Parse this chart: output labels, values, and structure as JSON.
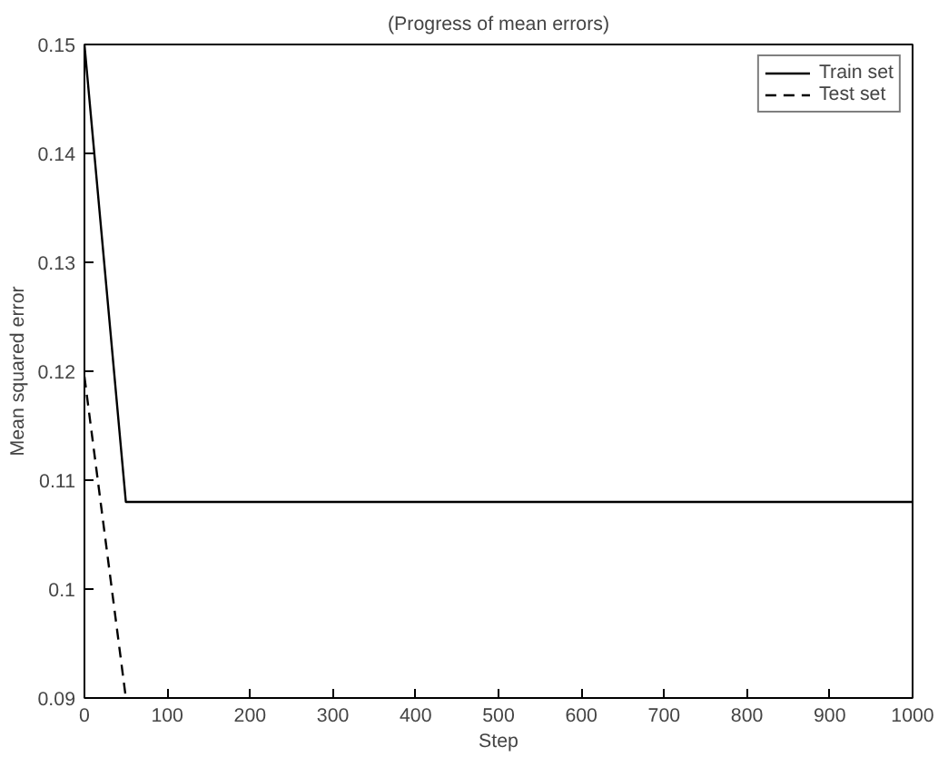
{
  "chart_data": {
    "type": "line",
    "title": "(Progress of mean errors)",
    "xlabel": "Step",
    "ylabel": "Mean squared error",
    "xlim": [
      0,
      1000
    ],
    "ylim": [
      0.09,
      0.15
    ],
    "xticks": [
      0,
      100,
      200,
      300,
      400,
      500,
      600,
      700,
      800,
      900,
      1000
    ],
    "yticks": [
      0.09,
      {
        "value": 0.1,
        "label": "0.1"
      },
      0.11,
      0.12,
      0.13,
      0.14,
      0.15
    ],
    "series": [
      {
        "name": "Train set",
        "color": "#000000",
        "x": [
          0,
          50,
          1000
        ],
        "values": [
          0.15,
          0.108,
          0.108
        ],
        "line_style": "solid"
      },
      {
        "name": "Test set",
        "color": "#000000",
        "x": [
          0,
          50
        ],
        "values": [
          0.1195,
          0.09
        ],
        "line_style": "dashed"
      }
    ],
    "legend": "top right",
    "grid": false
  }
}
